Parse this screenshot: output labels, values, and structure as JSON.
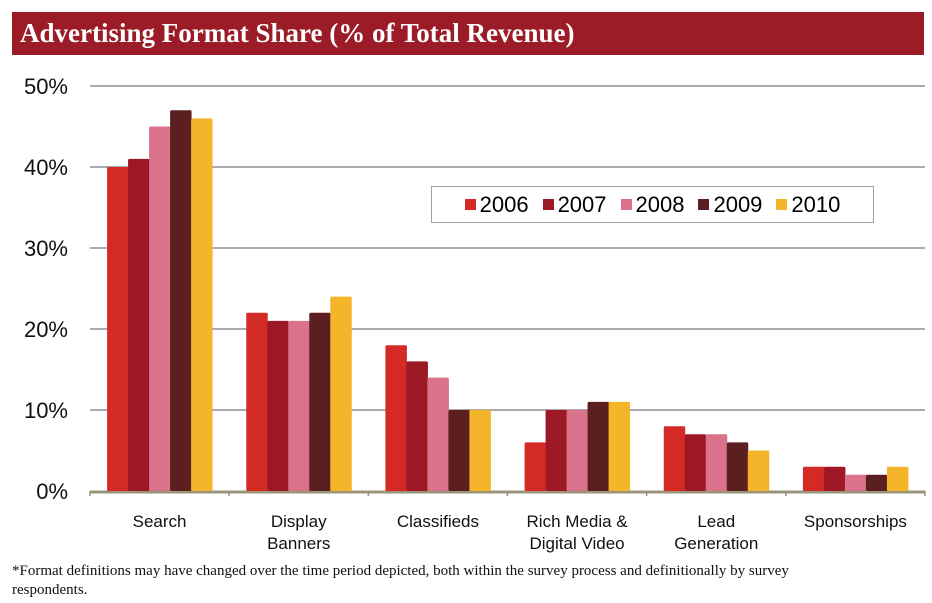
{
  "title": "Advertising Format Share (% of Total Revenue)",
  "footnote": "*Format definitions may have changed over the time period depicted, both within the survey process and definitionally by survey respondents.",
  "chart_data": {
    "type": "bar",
    "title": "Advertising Format Share (% of Total Revenue)",
    "xlabel": "",
    "ylabel": "",
    "categories": [
      "Search",
      "Display Banners",
      "Classifieds",
      "Rich Media & Digital Video",
      "Lead Generation",
      "Sponsorships"
    ],
    "category_lines": [
      [
        "Search"
      ],
      [
        "Display",
        "Banners"
      ],
      [
        "Classifieds"
      ],
      [
        "Rich Media &",
        "Digital Video"
      ],
      [
        "Lead",
        "Generation"
      ],
      [
        "Sponsorships"
      ]
    ],
    "ylim": [
      0,
      50
    ],
    "yticks": [
      "0%",
      "10%",
      "20%",
      "30%",
      "40%",
      "50%"
    ],
    "grid": true,
    "legend_position": "top-right",
    "series": [
      {
        "name": "2006",
        "color": "#d42a26",
        "values": [
          40,
          22,
          18,
          6,
          8,
          3
        ]
      },
      {
        "name": "2007",
        "color": "#9b1824",
        "values": [
          41,
          21,
          16,
          10,
          7,
          3
        ]
      },
      {
        "name": "2008",
        "color": "#d9728a",
        "values": [
          45,
          21,
          14,
          10,
          7,
          2
        ]
      },
      {
        "name": "2009",
        "color": "#5c1f1f",
        "values": [
          47,
          22,
          10,
          11,
          6,
          2
        ]
      },
      {
        "name": "2010",
        "color": "#f5b52a",
        "values": [
          46,
          24,
          10,
          11,
          5,
          3
        ]
      }
    ]
  }
}
